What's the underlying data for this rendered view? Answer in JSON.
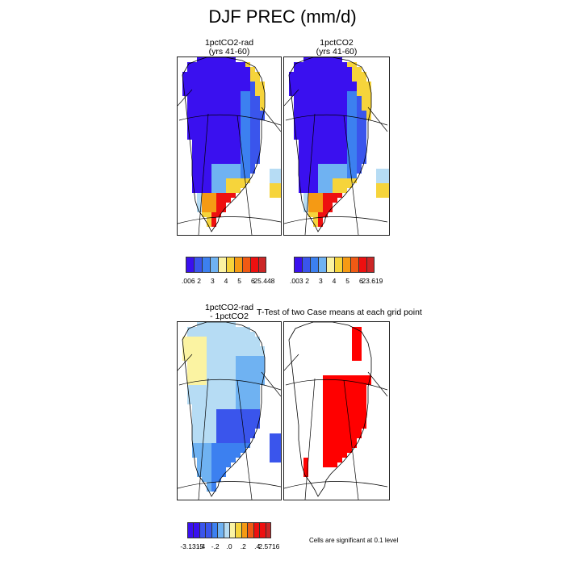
{
  "title": "DJF PREC (mm/d)",
  "colors": {
    "c_blue_deep": "#3a10ef",
    "c_blue": "#3a55ec",
    "c_blue_mid": "#3c80f0",
    "c_sky": "#6fb2f2",
    "c_pale_blue": "#b6dcf4",
    "c_pale_yellow": "#fbf3a2",
    "c_yellow": "#f6d43b",
    "c_orange": "#f59a14",
    "c_orange_red": "#f05a14",
    "c_red": "#ee1010",
    "c_dark_red": "#cc2626",
    "c_sig_red": "#ff0000",
    "land_outline": "#000000"
  },
  "panels": [
    {
      "title_line1": "1pctCO2-rad",
      "title_line2": "(yrs 41-60)",
      "legend": {
        "labels": [
          ".006",
          "2",
          "3",
          "4",
          "5",
          "6",
          "25.448"
        ]
      }
    },
    {
      "title_line1": "1pctCO2",
      "title_line2": "(yrs 41-60)",
      "legend": {
        "labels": [
          ".003",
          "2",
          "3",
          "4",
          "5",
          "6",
          "23.619"
        ]
      }
    },
    {
      "title_line1": "1pctCO2-rad",
      "title_line2": "- 1pctCO2",
      "legend": {
        "labels": [
          "-3.1315",
          "-.4",
          "-.2",
          ".0",
          ".2",
          ".4",
          "2.5716"
        ]
      }
    },
    {
      "title_line1": "T-Test of two Case means at each grid point",
      "note": "Cells are significant at 0.1 level"
    }
  ]
}
